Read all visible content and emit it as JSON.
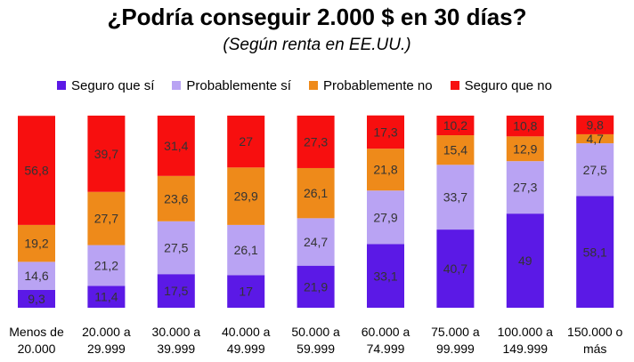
{
  "chart_data": {
    "type": "bar",
    "stacked": true,
    "title": "¿Podría conseguir 2.000 $ en 30 días?",
    "subtitle": "(Según renta en EE.UU.)",
    "categories": [
      [
        "Menos de",
        "20.000"
      ],
      [
        "20.000 a",
        "29.999"
      ],
      [
        "30.000 a",
        "39.999"
      ],
      [
        "40.000 a",
        "49.999"
      ],
      [
        "50.000 a",
        "59.999"
      ],
      [
        "60.000 a",
        "74.999"
      ],
      [
        "75.000 a",
        "99.999"
      ],
      [
        "100.000 a",
        "149.999"
      ],
      [
        "150.000 o",
        "más"
      ]
    ],
    "series": [
      {
        "name": "Seguro que sí",
        "color": "#5b19e6",
        "values": [
          9.3,
          11.4,
          17.5,
          17,
          21.9,
          33.1,
          40.7,
          49,
          58.1
        ]
      },
      {
        "name": "Probablemente sí",
        "color": "#b9a3f3",
        "values": [
          14.6,
          21.2,
          27.5,
          26.1,
          24.7,
          27.9,
          33.7,
          27.3,
          27.5
        ]
      },
      {
        "name": "Probablemente no",
        "color": "#ee8a1a",
        "values": [
          19.2,
          27.7,
          23.6,
          29.9,
          26.1,
          21.8,
          15.4,
          12.9,
          4.7
        ]
      },
      {
        "name": "Seguro que no",
        "color": "#f70f0f",
        "values": [
          56.8,
          39.7,
          31.4,
          27,
          27.3,
          17.3,
          10.2,
          10.8,
          9.8
        ]
      }
    ],
    "ylim": [
      0,
      100
    ],
    "legend_position": "top",
    "xlabel": "",
    "ylabel": ""
  }
}
